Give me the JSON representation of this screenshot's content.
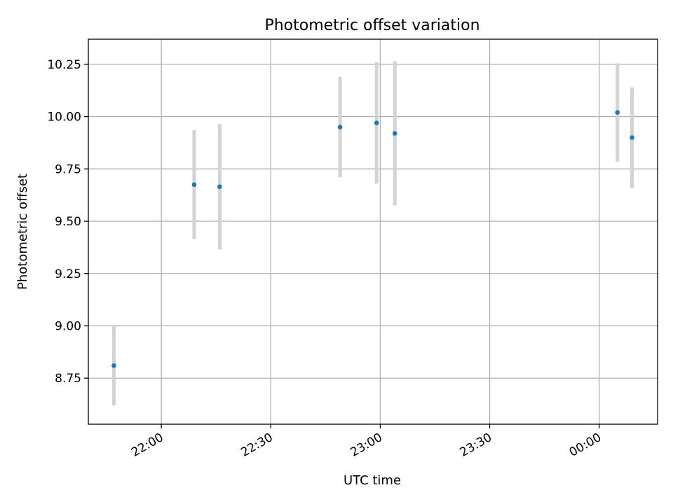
{
  "chart_data": {
    "type": "scatter",
    "title": "Photometric offset variation",
    "xlabel": "UTC time",
    "ylabel": "Photometric offset",
    "x_ticks": [
      "22:00",
      "22:30",
      "23:00",
      "23:30",
      "00:00"
    ],
    "y_ticks": [
      "8.75",
      "9.00",
      "9.25",
      "9.50",
      "9.75",
      "10.00",
      "10.25"
    ],
    "xlim": [
      "21:40",
      "00:16"
    ],
    "ylim": [
      8.53,
      10.37
    ],
    "grid": true,
    "marker_color": "#1f77b4",
    "errorbar_color": "#d3d3d3",
    "points": [
      {
        "x": "21:47",
        "y": 8.81,
        "err": 0.19
      },
      {
        "x": "22:09",
        "y": 9.675,
        "err": 0.26
      },
      {
        "x": "22:16",
        "y": 9.665,
        "err": 0.3
      },
      {
        "x": "22:49",
        "y": 9.95,
        "err": 0.24
      },
      {
        "x": "22:59",
        "y": 9.97,
        "err": 0.29
      },
      {
        "x": "23:04",
        "y": 9.92,
        "err": 0.345
      },
      {
        "x": "00:05",
        "y": 10.02,
        "err": 0.235
      },
      {
        "x": "00:09",
        "y": 9.9,
        "err": 0.24
      }
    ]
  }
}
